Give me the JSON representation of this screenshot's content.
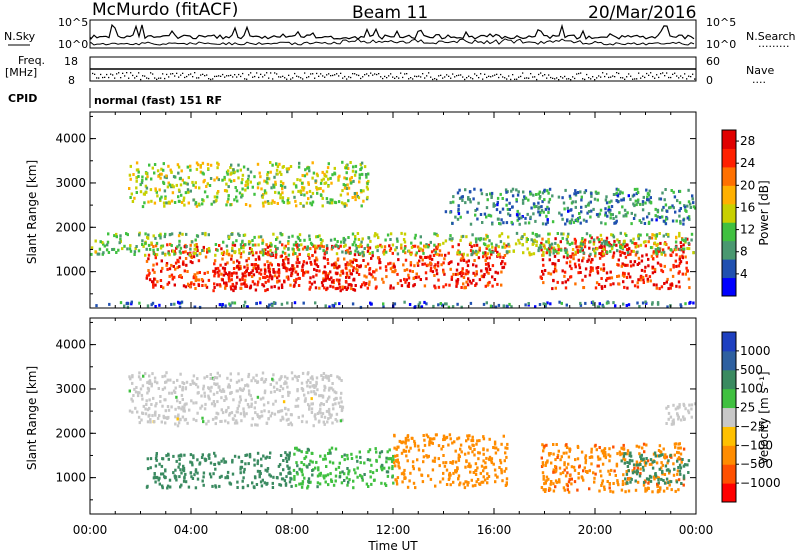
{
  "header": {
    "station": "McMurdo (fitACF)",
    "beam": "Beam 11",
    "date": "20/Mar/2016",
    "nsky_label": "N.Sky",
    "nsearch_label": "N.Search",
    "nsearch_dots": "·········",
    "noise_ticks": [
      "10^5",
      "10^0"
    ],
    "freq_label_1": "Freq.",
    "freq_label_2": "[MHz]",
    "freq_ticks": [
      "18",
      "8"
    ],
    "nave_label": "Nave",
    "nave_dots": "····",
    "nave_ticks": [
      "60",
      "0"
    ],
    "cpid_label": "CPID",
    "cpid_value": "normal (fast) 151 RF"
  },
  "colors": {
    "power": [
      "#0000ff",
      "#2050b0",
      "#4a9870",
      "#40c040",
      "#c8d000",
      "#ffb000",
      "#ff7000",
      "#ff2000",
      "#e00000"
    ],
    "velocity": [
      "#ff0000",
      "#ff5000",
      "#ff8c00",
      "#ffc000",
      "#c8c8c8",
      "#40c040",
      "#3a8a60",
      "#2e60a0",
      "#1e40c0"
    ],
    "ground": "#a0a0a0"
  },
  "chart_data": [
    {
      "type": "heatmap",
      "panel": "power",
      "xlabel": "",
      "ylabel": "Slant Range [km]",
      "x_ticks": [
        "00:00",
        "04:00",
        "08:00",
        "12:00",
        "16:00",
        "20:00",
        "00:00"
      ],
      "x_range_hours": [
        0,
        24
      ],
      "y_ticks": [
        1000,
        2000,
        3000,
        4000
      ],
      "ylim": [
        180,
        4600
      ],
      "colorbar": {
        "label": "Power [dB]",
        "ticks": [
          4,
          8,
          12,
          16,
          20,
          24,
          28
        ],
        "range": [
          0,
          30
        ]
      },
      "regions": [
        {
          "t0": 2.2,
          "t1": 16.5,
          "r0": 650,
          "r1": 1650,
          "value": 25
        },
        {
          "t0": 4.8,
          "t1": 10.5,
          "r0": 600,
          "r1": 1200,
          "value": 28
        },
        {
          "t0": 17.8,
          "t1": 23.7,
          "r0": 650,
          "r1": 1800,
          "value": 26
        },
        {
          "t0": 0.0,
          "t1": 24.0,
          "r0": 1400,
          "r1": 1900,
          "value": 12
        },
        {
          "t0": 1.5,
          "t1": 11.0,
          "r0": 2500,
          "r1": 3500,
          "value": 14
        },
        {
          "t0": 14.0,
          "t1": 24.0,
          "r0": 2100,
          "r1": 2900,
          "value": 8
        },
        {
          "t0": 0.0,
          "t1": 24.0,
          "r0": 180,
          "r1": 350,
          "value": 6
        }
      ]
    },
    {
      "type": "heatmap",
      "panel": "velocity",
      "xlabel": "Time UT",
      "ylabel": "Slant Range [km]",
      "x_ticks": [
        "00:00",
        "04:00",
        "08:00",
        "12:00",
        "16:00",
        "20:00",
        "00:00"
      ],
      "x_range_hours": [
        0,
        24
      ],
      "y_ticks": [
        1000,
        2000,
        3000,
        4000
      ],
      "ylim": [
        180,
        4600
      ],
      "colorbar": {
        "label": "Velocity [m s⁻¹]",
        "ticks": [
          "1000",
          "500",
          "100",
          "25",
          "−25",
          "−100",
          "−500",
          "−1000"
        ]
      },
      "regions": [
        {
          "t0": 2.2,
          "t1": 8.0,
          "r0": 800,
          "r1": 1600,
          "value": 300
        },
        {
          "t0": 8.0,
          "t1": 12.0,
          "r0": 800,
          "r1": 1700,
          "value": 80
        },
        {
          "t0": 12.0,
          "t1": 16.5,
          "r0": 800,
          "r1": 2000,
          "value": -300
        },
        {
          "t0": 17.8,
          "t1": 23.5,
          "r0": 700,
          "r1": 1800,
          "value": -400
        },
        {
          "t0": 21.0,
          "t1": 23.7,
          "r0": 900,
          "r1": 1600,
          "value": 300
        },
        {
          "t0": 1.5,
          "t1": 10.0,
          "r0": 2200,
          "r1": 3400,
          "value": 0
        },
        {
          "t0": 22.5,
          "t1": 24.0,
          "r0": 2200,
          "r1": 2700,
          "value": 0
        }
      ]
    }
  ]
}
